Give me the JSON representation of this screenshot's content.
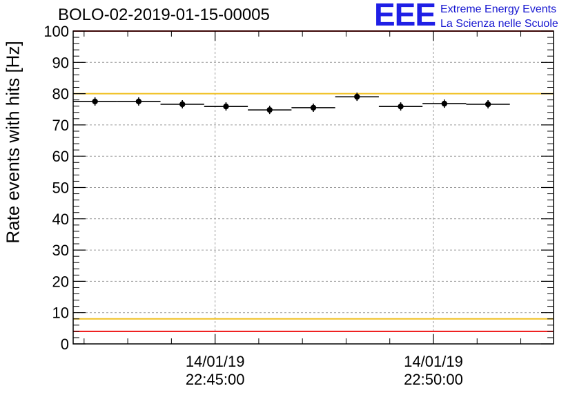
{
  "header": {
    "run_title": "BOLO-02-2019-01-15-00005"
  },
  "logo": {
    "mark": "EEE",
    "line1": "Extreme Energy Events",
    "line2": "La Scienza nelle Scuole",
    "color": "#1f1fe6"
  },
  "chart_data": {
    "type": "scatter",
    "title": "BOLO-02-2019-01-15-00005",
    "ylabel": "Rate events with hits [Hz]",
    "xlabel": "",
    "ylim": [
      0,
      100
    ],
    "yticks": [
      0,
      10,
      20,
      30,
      40,
      50,
      60,
      70,
      80,
      90,
      100
    ],
    "xlim": [
      "2019-01-14 22:42:15",
      "2019-01-14 22:52:15"
    ],
    "xticks": [
      {
        "t": "2019-01-14 22:45:00",
        "date": "14/01/19",
        "time": "22:45:00"
      },
      {
        "t": "2019-01-14 22:50:00",
        "date": "14/01/19",
        "time": "22:50:00"
      }
    ],
    "grid": true,
    "bin_width_s": 60,
    "points": [
      {
        "t": "2019-01-14 22:42:15",
        "y": 77.5
      },
      {
        "t": "2019-01-14 22:43:15",
        "y": 77.5
      },
      {
        "t": "2019-01-14 22:44:15",
        "y": 76.6
      },
      {
        "t": "2019-01-14 22:45:15",
        "y": 75.9
      },
      {
        "t": "2019-01-14 22:46:15",
        "y": 74.8
      },
      {
        "t": "2019-01-14 22:47:15",
        "y": 75.5
      },
      {
        "t": "2019-01-14 22:48:15",
        "y": 79.0
      },
      {
        "t": "2019-01-14 22:49:15",
        "y": 75.9
      },
      {
        "t": "2019-01-14 22:50:15",
        "y": 76.8
      },
      {
        "t": "2019-01-14 22:51:15",
        "y": 76.6
      }
    ],
    "reference_lines": [
      {
        "y": 100,
        "color": "#ee1111"
      },
      {
        "y": 80,
        "color": "#f0c020"
      },
      {
        "y": 8,
        "color": "#f0c020"
      },
      {
        "y": 4,
        "color": "#ee1111"
      }
    ]
  }
}
